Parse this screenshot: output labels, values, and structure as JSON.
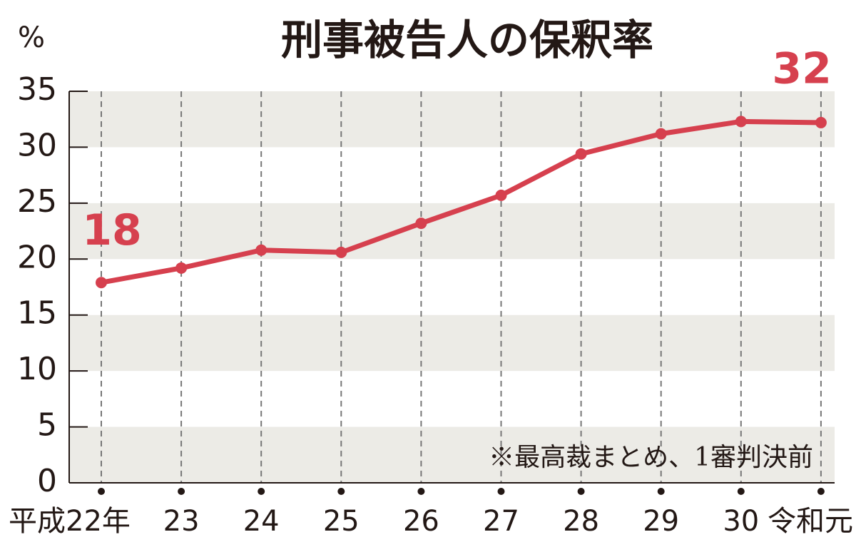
{
  "chart_data": {
    "type": "line",
    "title": "刑事被告人の保釈率",
    "y_unit": "%",
    "note": "※最高裁まとめ、1審判決前",
    "categories": [
      "平成22年",
      "23",
      "24",
      "25",
      "26",
      "27",
      "28",
      "29",
      "30",
      "令和元"
    ],
    "series": [
      {
        "name": "保釈率",
        "color": "#d6404e",
        "values": [
          17.9,
          19.2,
          20.8,
          20.6,
          23.2,
          25.7,
          29.4,
          31.2,
          32.3,
          32.2
        ],
        "value_labels": [
          "18",
          null,
          null,
          null,
          null,
          null,
          null,
          null,
          null,
          "32"
        ]
      }
    ],
    "ylim": [
      0,
      35
    ],
    "yticks": [
      0,
      5,
      10,
      15,
      20,
      25,
      30,
      35
    ],
    "grid": true
  }
}
